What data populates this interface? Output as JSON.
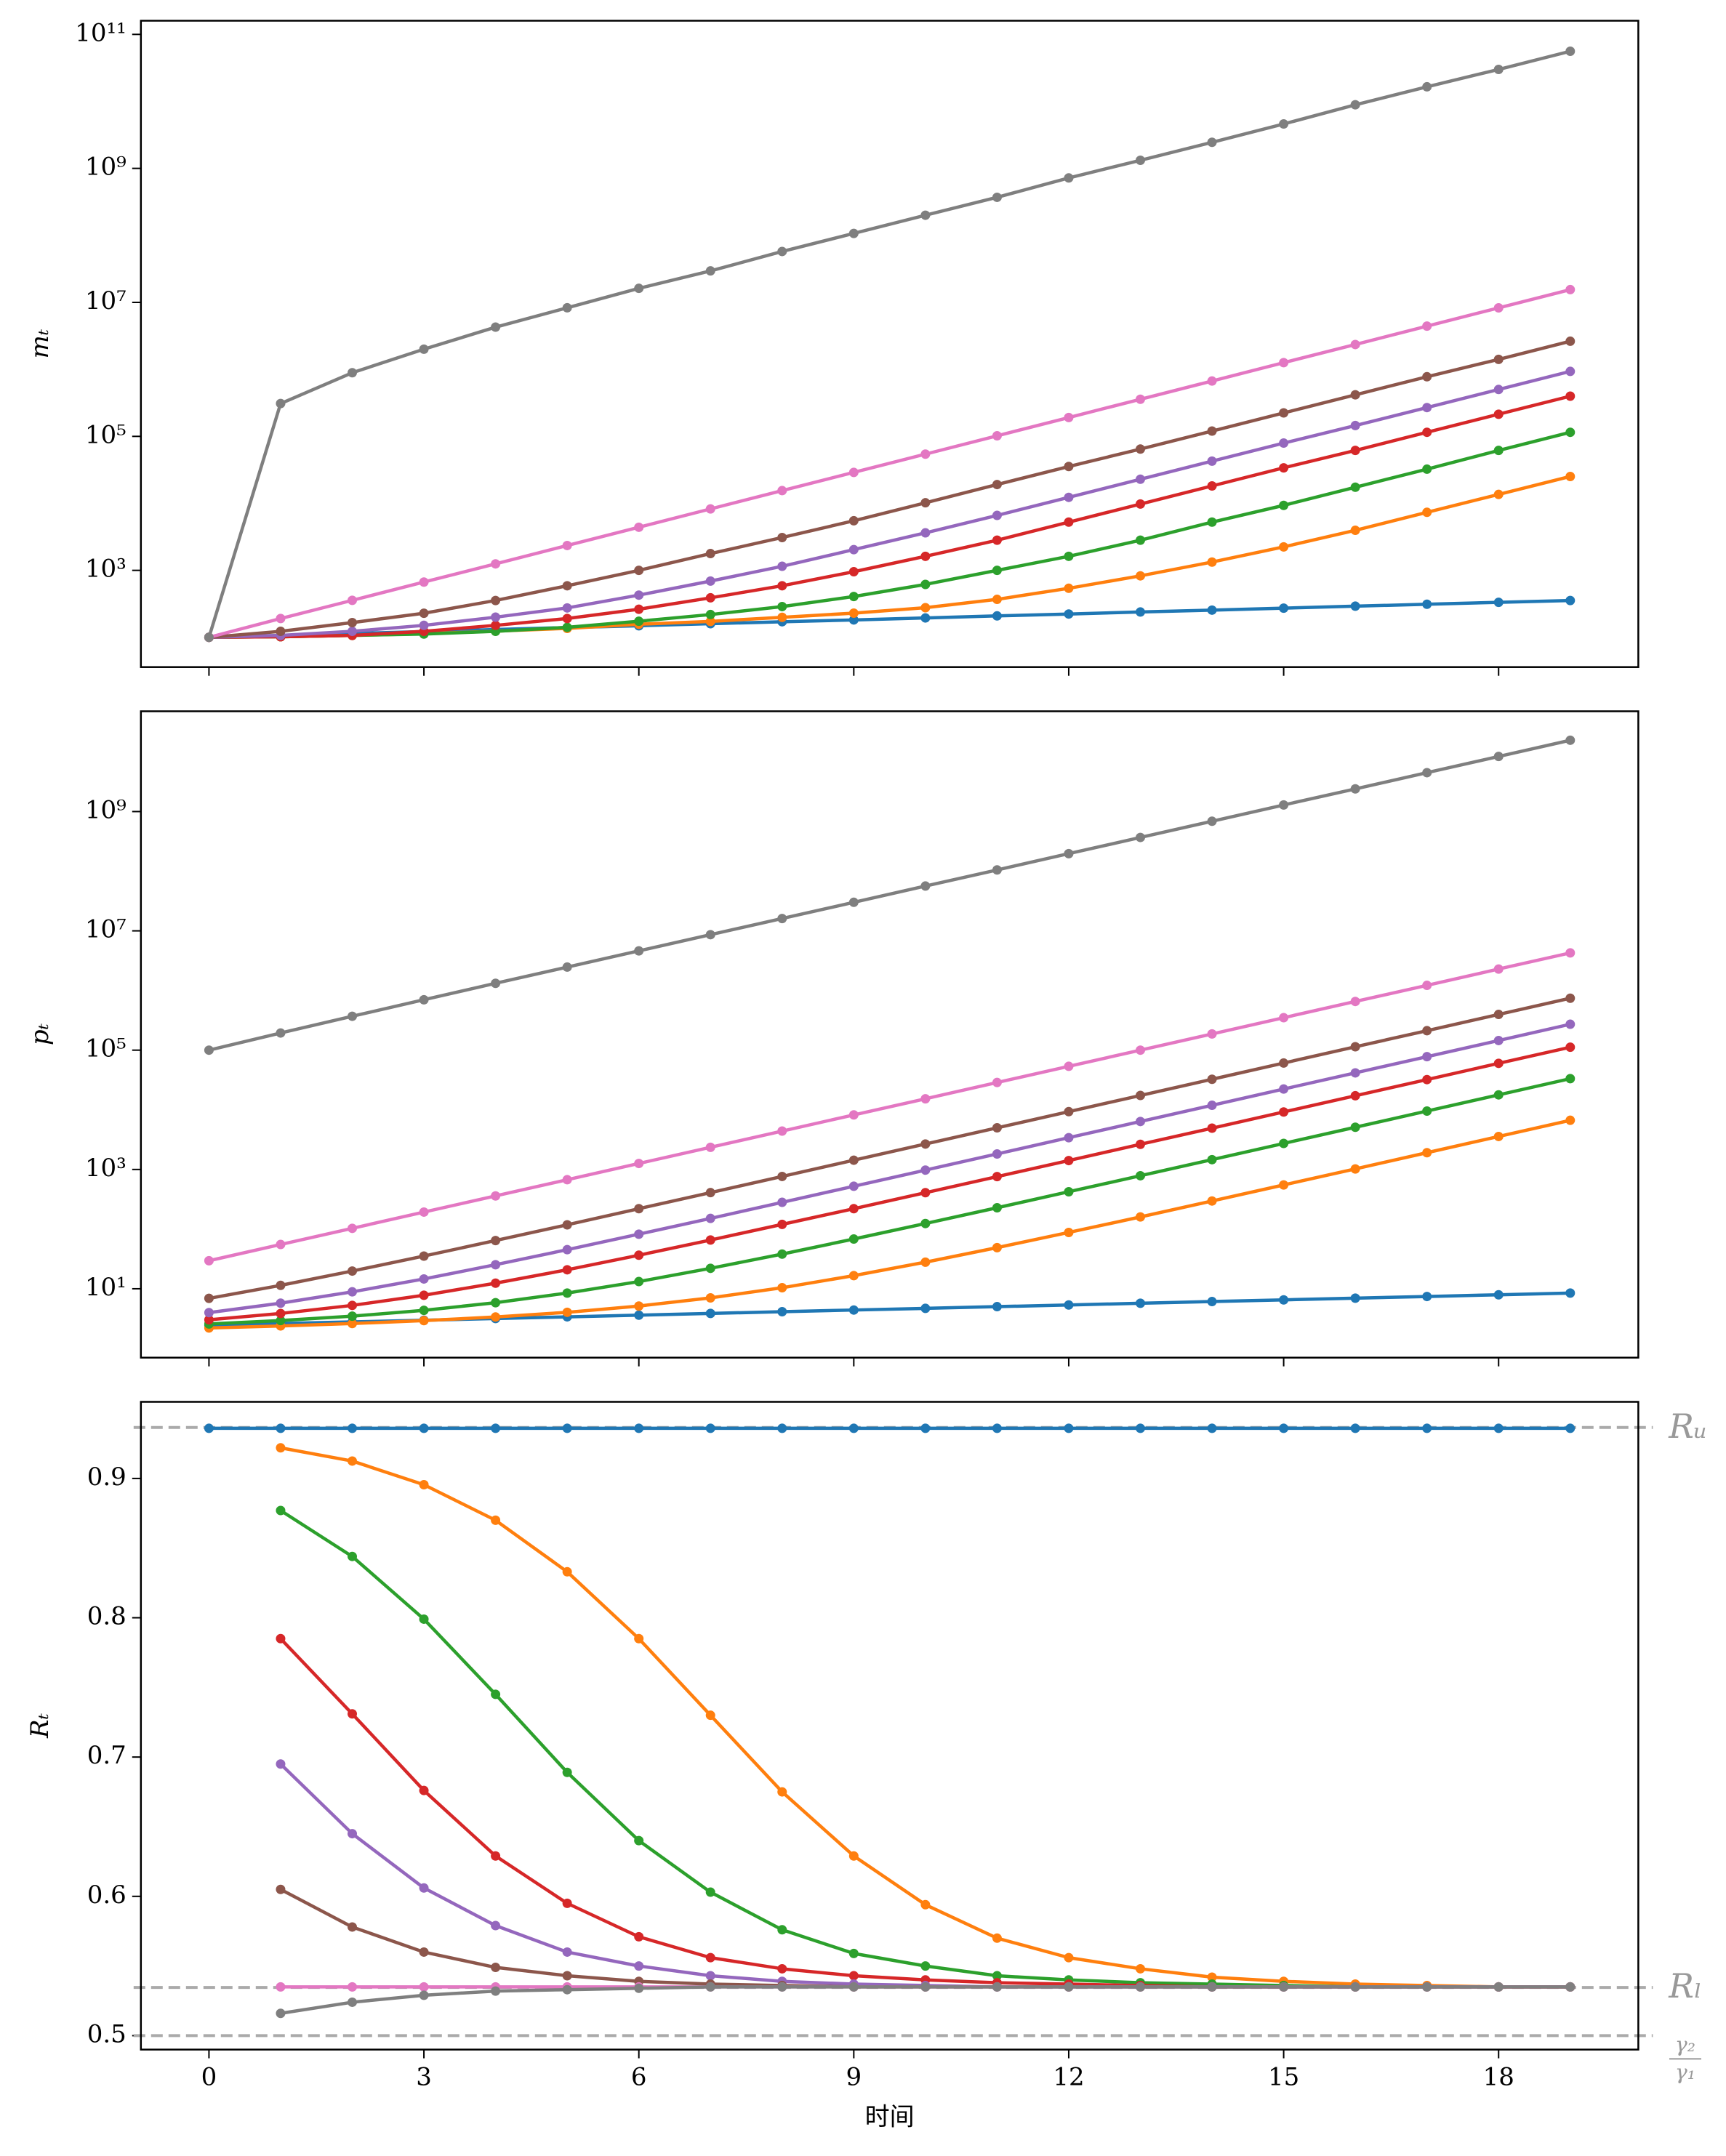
{
  "chart_data": [
    {
      "type": "line",
      "ylabel": "mₜ",
      "yscale": "log",
      "xlim": [
        -0.95,
        19.95
      ],
      "xticks": [
        0,
        3,
        6,
        9,
        12,
        15,
        18
      ],
      "ylim": [
        36,
        160000000000
      ],
      "yticks": [
        {
          "value": 1000,
          "label": "10³"
        },
        {
          "value": 100000,
          "label": "10⁵"
        },
        {
          "value": 10000000,
          "label": "10⁷"
        },
        {
          "value": 1000000000,
          "label": "10⁹"
        },
        {
          "value": 100000000000,
          "label": "10¹¹"
        }
      ],
      "x": [
        0,
        1,
        2,
        3,
        4,
        5,
        6,
        7,
        8,
        9,
        10,
        11,
        12,
        13,
        14,
        15,
        16,
        17,
        18,
        19
      ],
      "series": [
        {
          "color": "#1f77b4",
          "values": [
            100,
            107,
            114,
            122,
            131,
            140,
            149,
            160,
            171,
            182,
            195,
            209,
            223,
            239,
            255,
            273,
            292,
            312,
            333,
            355
          ]
        },
        {
          "color": "#ff7f0e",
          "values": [
            100,
            102,
            107,
            113,
            124,
            136,
            157,
            173,
            199,
            230,
            277,
            369,
            540,
            828,
            1330,
            2240,
            3960,
            7350,
            13600,
            25200
          ]
        },
        {
          "color": "#2ca02c",
          "values": [
            100,
            102,
            107,
            112,
            123,
            141,
            174,
            219,
            288,
            407,
            617,
            1000,
            1620,
            2820,
            5250,
            9330,
            17400,
            32400,
            61700,
            115000
          ]
        },
        {
          "color": "#d62728",
          "values": [
            100,
            102,
            107,
            123,
            151,
            191,
            263,
            389,
            589,
            955,
            1620,
            2820,
            5250,
            9770,
            18200,
            33900,
            61700,
            115000,
            214000,
            398000
          ]
        },
        {
          "color": "#9467bd",
          "values": [
            100,
            107,
            123,
            151,
            200,
            275,
            427,
            692,
            1150,
            2040,
            3630,
            6610,
            12300,
            22900,
            42700,
            79400,
            145000,
            269000,
            501000,
            933000
          ]
        },
        {
          "color": "#8c564b",
          "values": [
            100,
            123,
            166,
            229,
            355,
            589,
            1000,
            1780,
            3090,
            5500,
            10200,
            19100,
            35500,
            64600,
            120000,
            224000,
            417000,
            776000,
            1410000,
            2630000
          ]
        },
        {
          "color": "#e377c2",
          "values": [
            100,
            191,
            357,
            669,
            1250,
            2350,
            4400,
            8260,
            15500,
            29000,
            54300,
            102000,
            191000,
            358000,
            670000,
            1260000,
            2350000,
            4420000,
            8280000,
            15500000
          ]
        },
        {
          "color": "#7f7f7f",
          "values": [
            100,
            309000,
            891000,
            2000000,
            4270000,
            8300000,
            16200000,
            29500000,
            57500000,
            107000000,
            200000000,
            370000000,
            720000000,
            1320000000,
            2450000000,
            4600000000,
            8900000000,
            16500000000,
            30000000000,
            56000000000
          ]
        }
      ]
    },
    {
      "type": "line",
      "ylabel": "pₜ",
      "yscale": "log",
      "xlim": [
        -0.95,
        19.95
      ],
      "xticks": [
        0,
        3,
        6,
        9,
        12,
        15,
        18
      ],
      "ylim": [
        0.7,
        48000000000
      ],
      "yticks": [
        {
          "value": 10,
          "label": "10¹"
        },
        {
          "value": 1000,
          "label": "10³"
        },
        {
          "value": 100000,
          "label": "10⁵"
        },
        {
          "value": 10000000,
          "label": "10⁷"
        },
        {
          "value": 1000000000,
          "label": "10⁹"
        }
      ],
      "x": [
        0,
        1,
        2,
        3,
        4,
        5,
        6,
        7,
        8,
        9,
        10,
        11,
        12,
        13,
        14,
        15,
        16,
        17,
        18,
        19
      ],
      "series": [
        {
          "color": "#1f77b4",
          "values": [
            2.44,
            2.61,
            2.78,
            2.97,
            3.17,
            3.38,
            3.61,
            3.86,
            4.12,
            4.4,
            4.69,
            5.01,
            5.35,
            5.71,
            6.1,
            6.51,
            6.95,
            7.42,
            7.92,
            8.46
          ]
        },
        {
          "color": "#ff7f0e",
          "values": [
            2.2,
            2.38,
            2.61,
            2.92,
            3.36,
            4.03,
            5.13,
            7.03,
            10.4,
            16.6,
            27.9,
            48.9,
            87.9,
            160,
            296,
            550,
            1020,
            1910,
            3570,
            6670
          ]
        },
        {
          "color": "#2ca02c",
          "values": [
            2.57,
            2.93,
            3.47,
            4.35,
            5.84,
            8.47,
            13.2,
            22,
            38.1,
            68.2,
            124,
            228,
            423,
            785,
            1460,
            2730,
            5100,
            9530,
            17800,
            33300
          ]
        },
        {
          "color": "#d62728",
          "values": [
            3.02,
            3.85,
            5.26,
            7.78,
            12.4,
            20.8,
            36.5,
            65.6,
            120,
            220,
            408,
            759,
            1410,
            2640,
            4920,
            9200,
            17200,
            32100,
            60100,
            112000
          ]
        },
        {
          "color": "#9467bd",
          "values": [
            3.98,
            5.73,
            8.88,
            14.6,
            25.3,
            45.2,
            82.2,
            151,
            281,
            523,
            975,
            1820,
            3410,
            6370,
            11900,
            22300,
            41600,
            77800,
            145000,
            272000
          ]
        },
        {
          "color": "#8c564b",
          "values": [
            6.9,
            11.4,
            19.8,
            35.3,
            64.3,
            118,
            220,
            409,
            763,
            1430,
            2670,
            4990,
            9310,
            17400,
            32500,
            60800,
            114000,
            212000,
            397000,
            743000
          ]
        },
        {
          "color": "#e377c2",
          "values": [
            29.5,
            55.2,
            103,
            193,
            360,
            673,
            1260,
            2350,
            4400,
            8210,
            15300,
            28700,
            53600,
            100000,
            187000,
            350000,
            655000,
            1220000,
            2290000,
            4270000
          ]
        },
        {
          "color": "#7f7f7f",
          "values": [
            100000,
            194000,
            370000,
            700000,
            1320000,
            2470000,
            4620000,
            8630000,
            16100000,
            30100000,
            56400000,
            105000000,
            197000000,
            368000000,
            688000000,
            1290000000,
            2400000000,
            4490000000,
            8390000000,
            15700000000
          ]
        }
      ]
    },
    {
      "type": "line",
      "ylabel": "Rₜ",
      "xlabel": "时间",
      "xlim": [
        -0.95,
        19.95
      ],
      "xticks": [
        0,
        3,
        6,
        9,
        12,
        15,
        18
      ],
      "ylim": [
        0.49,
        0.955
      ],
      "yticks": [
        0.5,
        0.6,
        0.7,
        0.8,
        0.9
      ],
      "x": [
        0,
        1,
        2,
        3,
        4,
        5,
        6,
        7,
        8,
        9,
        10,
        11,
        12,
        13,
        14,
        15,
        16,
        17,
        18,
        19
      ],
      "series": [
        {
          "color": "#1f77b4",
          "values": [
            0.936,
            0.936,
            0.936,
            0.936,
            0.936,
            0.936,
            0.936,
            0.936,
            0.936,
            0.936,
            0.936,
            0.936,
            0.936,
            0.936,
            0.936,
            0.936,
            0.936,
            0.936,
            0.936,
            0.936
          ]
        },
        {
          "color": "#ff7f0e",
          "values": [
            null,
            0.922,
            0.9125,
            0.8955,
            0.87,
            0.833,
            0.785,
            0.73,
            0.675,
            0.629,
            0.594,
            0.57,
            0.556,
            0.548,
            0.542,
            0.539,
            0.537,
            0.536,
            0.535,
            0.535
          ]
        },
        {
          "color": "#2ca02c",
          "values": [
            null,
            0.877,
            0.844,
            0.799,
            0.745,
            0.689,
            0.64,
            0.603,
            0.576,
            0.559,
            0.55,
            0.543,
            0.54,
            0.538,
            0.537,
            0.536,
            0.535,
            0.535,
            0.535,
            0.535
          ]
        },
        {
          "color": "#d62728",
          "values": [
            null,
            0.785,
            0.731,
            0.676,
            0.629,
            0.595,
            0.571,
            0.556,
            0.548,
            0.543,
            0.54,
            0.538,
            0.537,
            0.536,
            0.535,
            0.535,
            0.535,
            0.535,
            0.535,
            0.535
          ]
        },
        {
          "color": "#9467bd",
          "values": [
            null,
            0.695,
            0.645,
            0.606,
            0.579,
            0.56,
            0.55,
            0.543,
            0.539,
            0.537,
            0.536,
            0.535,
            0.535,
            0.535,
            0.535,
            0.535,
            0.535,
            0.535,
            0.535,
            0.535
          ]
        },
        {
          "color": "#8c564b",
          "values": [
            null,
            0.605,
            0.578,
            0.56,
            0.549,
            0.543,
            0.539,
            0.537,
            0.536,
            0.535,
            0.535,
            0.535,
            0.535,
            0.535,
            0.535,
            0.535,
            0.535,
            0.535,
            0.535,
            0.535
          ]
        },
        {
          "color": "#e377c2",
          "values": [
            null,
            0.535,
            0.535,
            0.535,
            0.535,
            0.535,
            0.535,
            0.535,
            0.535,
            0.535,
            0.535,
            0.535,
            0.535,
            0.535,
            0.535,
            0.535,
            0.535,
            0.535,
            0.535,
            0.535
          ]
        },
        {
          "color": "#7f7f7f",
          "values": [
            null,
            0.516,
            0.524,
            0.529,
            0.532,
            0.533,
            0.534,
            0.535,
            0.535,
            0.535,
            0.535,
            0.535,
            0.535,
            0.535,
            0.535,
            0.535,
            0.535,
            0.535,
            0.535,
            0.535
          ]
        }
      ],
      "hlines": [
        {
          "value": 0.9366,
          "label": "Rᵤ"
        },
        {
          "value": 0.5346,
          "label": "Rₗ"
        },
        {
          "value": 0.5,
          "label": {
            "numerator": "γ₂",
            "denominator": "γ₁"
          }
        }
      ]
    }
  ]
}
